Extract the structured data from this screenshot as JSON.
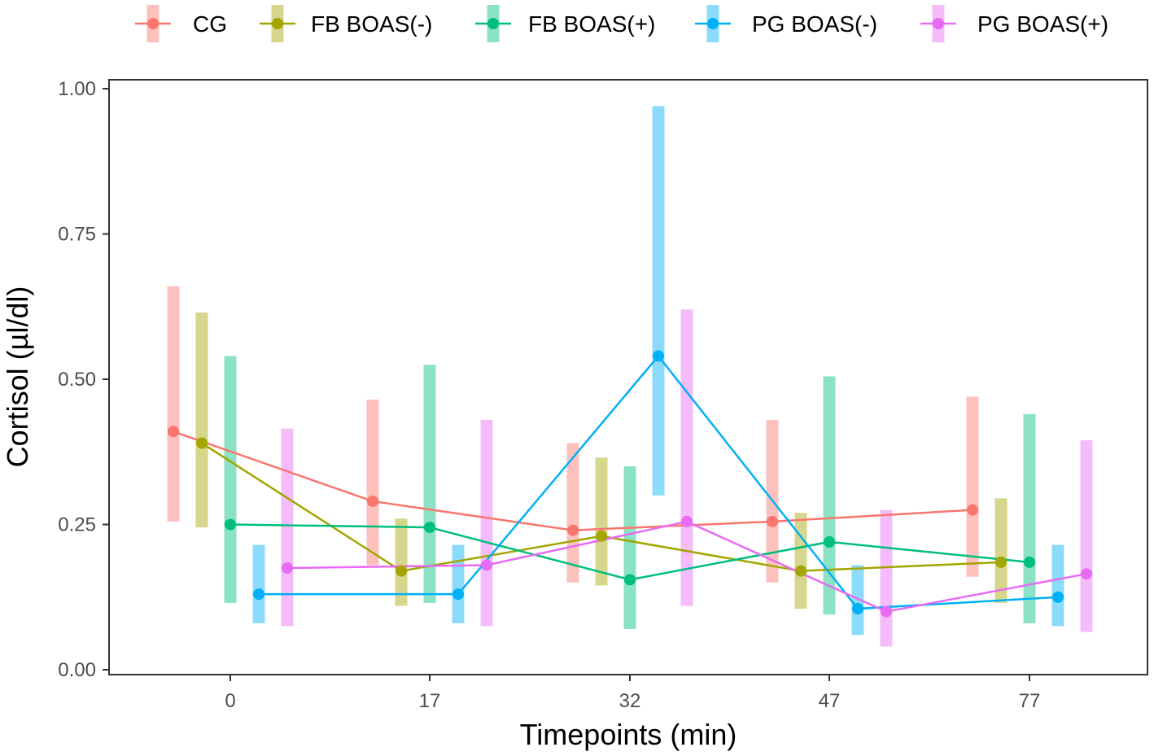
{
  "chart_data": {
    "type": "line",
    "title": "",
    "xlabel": "Timepoints (min)",
    "ylabel": "Cortisol (µl/dl)",
    "categories": [
      "0",
      "17",
      "32",
      "47",
      "77"
    ],
    "ylim": [
      0,
      1
    ],
    "yticks": [
      "0.00",
      "0.25",
      "0.50",
      "0.75",
      "1.00"
    ],
    "legend_position": "top",
    "grid": false,
    "series": [
      {
        "name": "CG",
        "color": "#F8766D",
        "values": [
          0.41,
          0.29,
          0.24,
          0.255,
          0.275
        ],
        "lower": [
          0.255,
          0.18,
          0.15,
          0.15,
          0.16
        ],
        "upper": [
          0.66,
          0.465,
          0.39,
          0.43,
          0.47
        ]
      },
      {
        "name": "FB BOAS(-)",
        "color": "#A3A500",
        "values": [
          0.39,
          0.17,
          0.23,
          0.17,
          0.185
        ],
        "lower": [
          0.245,
          0.11,
          0.145,
          0.105,
          0.115
        ],
        "upper": [
          0.615,
          0.26,
          0.365,
          0.27,
          0.295
        ]
      },
      {
        "name": "FB BOAS(+)",
        "color": "#00BF7D",
        "values": [
          0.25,
          0.245,
          0.155,
          0.22,
          0.185
        ],
        "lower": [
          0.115,
          0.115,
          0.07,
          0.095,
          0.08
        ],
        "upper": [
          0.54,
          0.525,
          0.35,
          0.505,
          0.44
        ]
      },
      {
        "name": "PG BOAS(-)",
        "color": "#00B0F6",
        "values": [
          0.13,
          0.13,
          0.54,
          0.105,
          0.125
        ],
        "lower": [
          0.08,
          0.08,
          0.3,
          0.06,
          0.075
        ],
        "upper": [
          0.215,
          0.215,
          0.97,
          0.18,
          0.215
        ]
      },
      {
        "name": "PG BOAS(+)",
        "color": "#E76BF3",
        "values": [
          0.175,
          0.18,
          0.255,
          0.1,
          0.165
        ],
        "lower": [
          0.075,
          0.075,
          0.11,
          0.04,
          0.065
        ],
        "upper": [
          0.415,
          0.43,
          0.62,
          0.275,
          0.395
        ]
      }
    ]
  }
}
